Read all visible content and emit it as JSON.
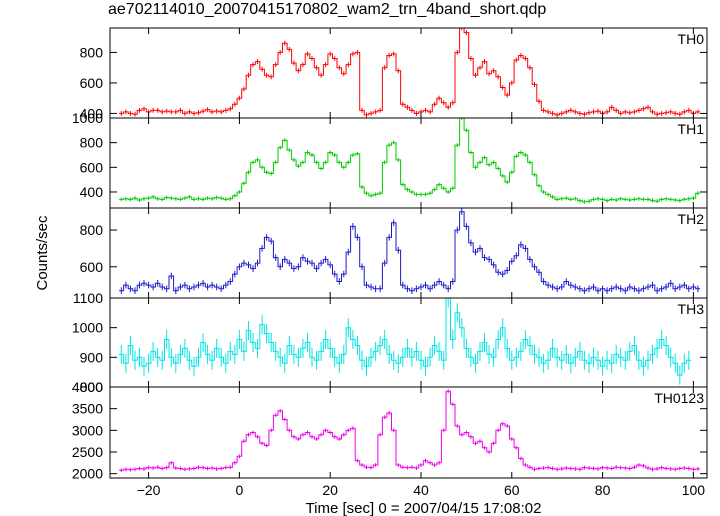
{
  "title": "ae702114010_20070415170802_wam2_trn_4band_short.qdp",
  "chart_data": {
    "type": "line",
    "title": "ae702114010_20070415170802_wam2_trn_4band_short.qdp",
    "xlabel": "Time [sec] 0 = 2007/04/15 17:08:02",
    "ylabel": "Counts/sec",
    "xlim": [
      -28.5,
      103
    ],
    "x_ticks": [
      -20,
      0,
      20,
      40,
      60,
      80,
      100
    ],
    "x_tick_labels": [
      "−20",
      "0",
      "20",
      "40",
      "60",
      "80",
      "100"
    ],
    "bin_width": 1,
    "x_start": -26,
    "x_end": 101,
    "panels": [
      {
        "name": "TH0",
        "color": "#ff0000",
        "ylim": [
          370,
          960
        ],
        "y_ticks": [
          400,
          600,
          800
        ],
        "y_tick_labels": [
          "400",
          "600",
          "800"
        ],
        "values": [
          400,
          410,
          400,
          395,
          420,
          430,
          410,
          420,
          420,
          410,
          415,
          410,
          410,
          420,
          400,
          410,
          400,
          405,
          415,
          425,
          410,
          415,
          410,
          420,
          430,
          460,
          500,
          560,
          650,
          720,
          740,
          690,
          650,
          640,
          720,
          800,
          860,
          820,
          730,
          680,
          720,
          790,
          760,
          700,
          650,
          720,
          790,
          760,
          700,
          660,
          720,
          790,
          800,
          420,
          390,
          400,
          410,
          420,
          700,
          780,
          790,
          680,
          460,
          440,
          420,
          400,
          410,
          420,
          410,
          460,
          500,
          470,
          440,
          470,
          800,
          960,
          930,
          760,
          650,
          700,
          740,
          660,
          680,
          640,
          570,
          520,
          600,
          750,
          780,
          760,
          700,
          590,
          480,
          420,
          410,
          400,
          390,
          400,
          410,
          420,
          410,
          400,
          395,
          405,
          410,
          415,
          400,
          410,
          440,
          420,
          400,
          410,
          405,
          410,
          420,
          430,
          440,
          410,
          395,
          400,
          405,
          410,
          400,
          395,
          410,
          420,
          400,
          410
        ],
        "err": 16
      },
      {
        "name": "TH1",
        "color": "#00cc00",
        "ylim": [
          270,
          1000
        ],
        "y_ticks": [
          400,
          600,
          800,
          1000
        ],
        "y_tick_labels": [
          "400",
          "600",
          "800",
          "1000"
        ],
        "values": [
          340,
          345,
          340,
          350,
          335,
          345,
          350,
          360,
          345,
          340,
          355,
          350,
          345,
          340,
          350,
          360,
          340,
          345,
          340,
          350,
          345,
          355,
          350,
          340,
          345,
          370,
          400,
          470,
          560,
          640,
          660,
          600,
          560,
          550,
          640,
          760,
          820,
          740,
          660,
          610,
          640,
          720,
          700,
          640,
          590,
          640,
          720,
          700,
          640,
          600,
          640,
          700,
          710,
          440,
          390,
          370,
          380,
          390,
          640,
          780,
          800,
          660,
          460,
          420,
          400,
          380,
          380,
          380,
          390,
          420,
          460,
          430,
          400,
          430,
          780,
          1000,
          900,
          720,
          600,
          640,
          680,
          620,
          640,
          590,
          530,
          480,
          560,
          690,
          720,
          700,
          640,
          540,
          450,
          400,
          380,
          360,
          340,
          345,
          350,
          340,
          345,
          330,
          320,
          325,
          340,
          345,
          340,
          330,
          340,
          335,
          345,
          340,
          335,
          340,
          345,
          340,
          340,
          330,
          325,
          340,
          345,
          340,
          335,
          330,
          340,
          345,
          350,
          390
        ],
        "err": 16
      },
      {
        "name": "TH2",
        "color": "#1a1acc",
        "ylim": [
          430,
          920
        ],
        "y_ticks": [
          600,
          800
        ],
        "y_tick_labels": [
          "600",
          "800"
        ],
        "values": [
          470,
          500,
          480,
          470,
          500,
          510,
          500,
          490,
          510,
          490,
          480,
          550,
          470,
          490,
          500,
          480,
          490,
          500,
          510,
          490,
          500,
          490,
          480,
          500,
          520,
          560,
          600,
          620,
          610,
          590,
          620,
          700,
          760,
          740,
          650,
          600,
          640,
          620,
          590,
          600,
          650,
          630,
          620,
          590,
          620,
          640,
          610,
          560,
          520,
          560,
          680,
          820,
          760,
          600,
          500,
          490,
          480,
          480,
          620,
          760,
          840,
          690,
          500,
          480,
          470,
          480,
          490,
          500,
          480,
          500,
          520,
          500,
          480,
          520,
          800,
          900,
          820,
          730,
          680,
          700,
          650,
          640,
          610,
          570,
          560,
          580,
          630,
          660,
          720,
          700,
          640,
          600,
          570,
          520,
          500,
          490,
          480,
          490,
          520,
          500,
          490,
          480,
          470,
          480,
          490,
          470,
          480,
          470,
          480,
          490,
          480,
          470,
          490,
          480,
          470,
          480,
          490,
          500,
          470,
          480,
          490,
          510,
          480,
          490,
          500,
          480,
          490,
          480
        ],
        "err": 18
      },
      {
        "name": "TH3",
        "color": "#00e5e5",
        "ylim": [
          800,
          1100
        ],
        "y_ticks": [
          800,
          900,
          1000,
          1100
        ],
        "y_tick_labels": [
          "800",
          "900",
          "1000",
          "1100"
        ],
        "values": [
          910,
          880,
          940,
          890,
          900,
          870,
          880,
          920,
          900,
          890,
          960,
          900,
          880,
          910,
          930,
          890,
          870,
          900,
          950,
          910,
          890,
          930,
          900,
          880,
          920,
          910,
          960,
          920,
          990,
          950,
          930,
          1010,
          980,
          950,
          920,
          900,
          880,
          940,
          910,
          900,
          930,
          950,
          900,
          890,
          920,
          960,
          930,
          900,
          880,
          910,
          1000,
          960,
          940,
          890,
          870,
          900,
          920,
          940,
          960,
          910,
          890,
          880,
          900,
          930,
          900,
          920,
          890,
          870,
          900,
          940,
          920,
          890,
          1100,
          960,
          1050,
          1000,
          930,
          900,
          880,
          920,
          950,
          910,
          900,
          960,
          1000,
          930,
          890,
          900,
          920,
          960,
          940,
          910,
          900,
          880,
          890,
          930,
          900,
          890,
          910,
          880,
          900,
          920,
          890,
          880,
          900,
          890,
          870,
          890,
          880,
          910,
          900,
          890,
          920,
          940,
          890,
          870,
          890,
          910,
          930,
          960,
          940,
          900,
          880,
          840,
          880,
          890
        ],
        "err": 32
      },
      {
        "name": "TH0123",
        "color": "#ee00ee",
        "ylim": [
          1900,
          4000
        ],
        "y_ticks": [
          2000,
          2500,
          3000,
          3500,
          4000
        ],
        "y_tick_labels": [
          "2000",
          "2500",
          "3000",
          "3500",
          "4000"
        ],
        "values": [
          2080,
          2100,
          2090,
          2100,
          2120,
          2110,
          2140,
          2130,
          2150,
          2120,
          2140,
          2250,
          2130,
          2120,
          2100,
          2110,
          2120,
          2150,
          2140,
          2120,
          2130,
          2110,
          2120,
          2140,
          2150,
          2250,
          2400,
          2750,
          2900,
          2950,
          2850,
          2700,
          2650,
          3000,
          3350,
          3450,
          3250,
          3000,
          2850,
          2800,
          2900,
          2950,
          2850,
          2800,
          2900,
          3000,
          2950,
          2850,
          2800,
          2900,
          3000,
          3050,
          2300,
          2200,
          2150,
          2140,
          2200,
          2900,
          3300,
          3400,
          3000,
          2200,
          2150,
          2140,
          2150,
          2130,
          2200,
          2300,
          2250,
          2200,
          2250,
          3000,
          3900,
          3600,
          3100,
          2900,
          2950,
          2850,
          2700,
          2750,
          2600,
          2500,
          2700,
          3000,
          3150,
          3100,
          2800,
          2600,
          2350,
          2200,
          2150,
          2100,
          2120,
          2130,
          2140,
          2120,
          2100,
          2110,
          2130,
          2120,
          2110,
          2100,
          2140,
          2130,
          2120,
          2110,
          2140,
          2130,
          2120,
          2150,
          2140,
          2130,
          2120,
          2150,
          2200,
          2180,
          2130,
          2100,
          2110,
          2140,
          2120,
          2110,
          2100,
          2120,
          2130,
          2120,
          2100,
          2110
        ],
        "err": 45
      }
    ]
  }
}
